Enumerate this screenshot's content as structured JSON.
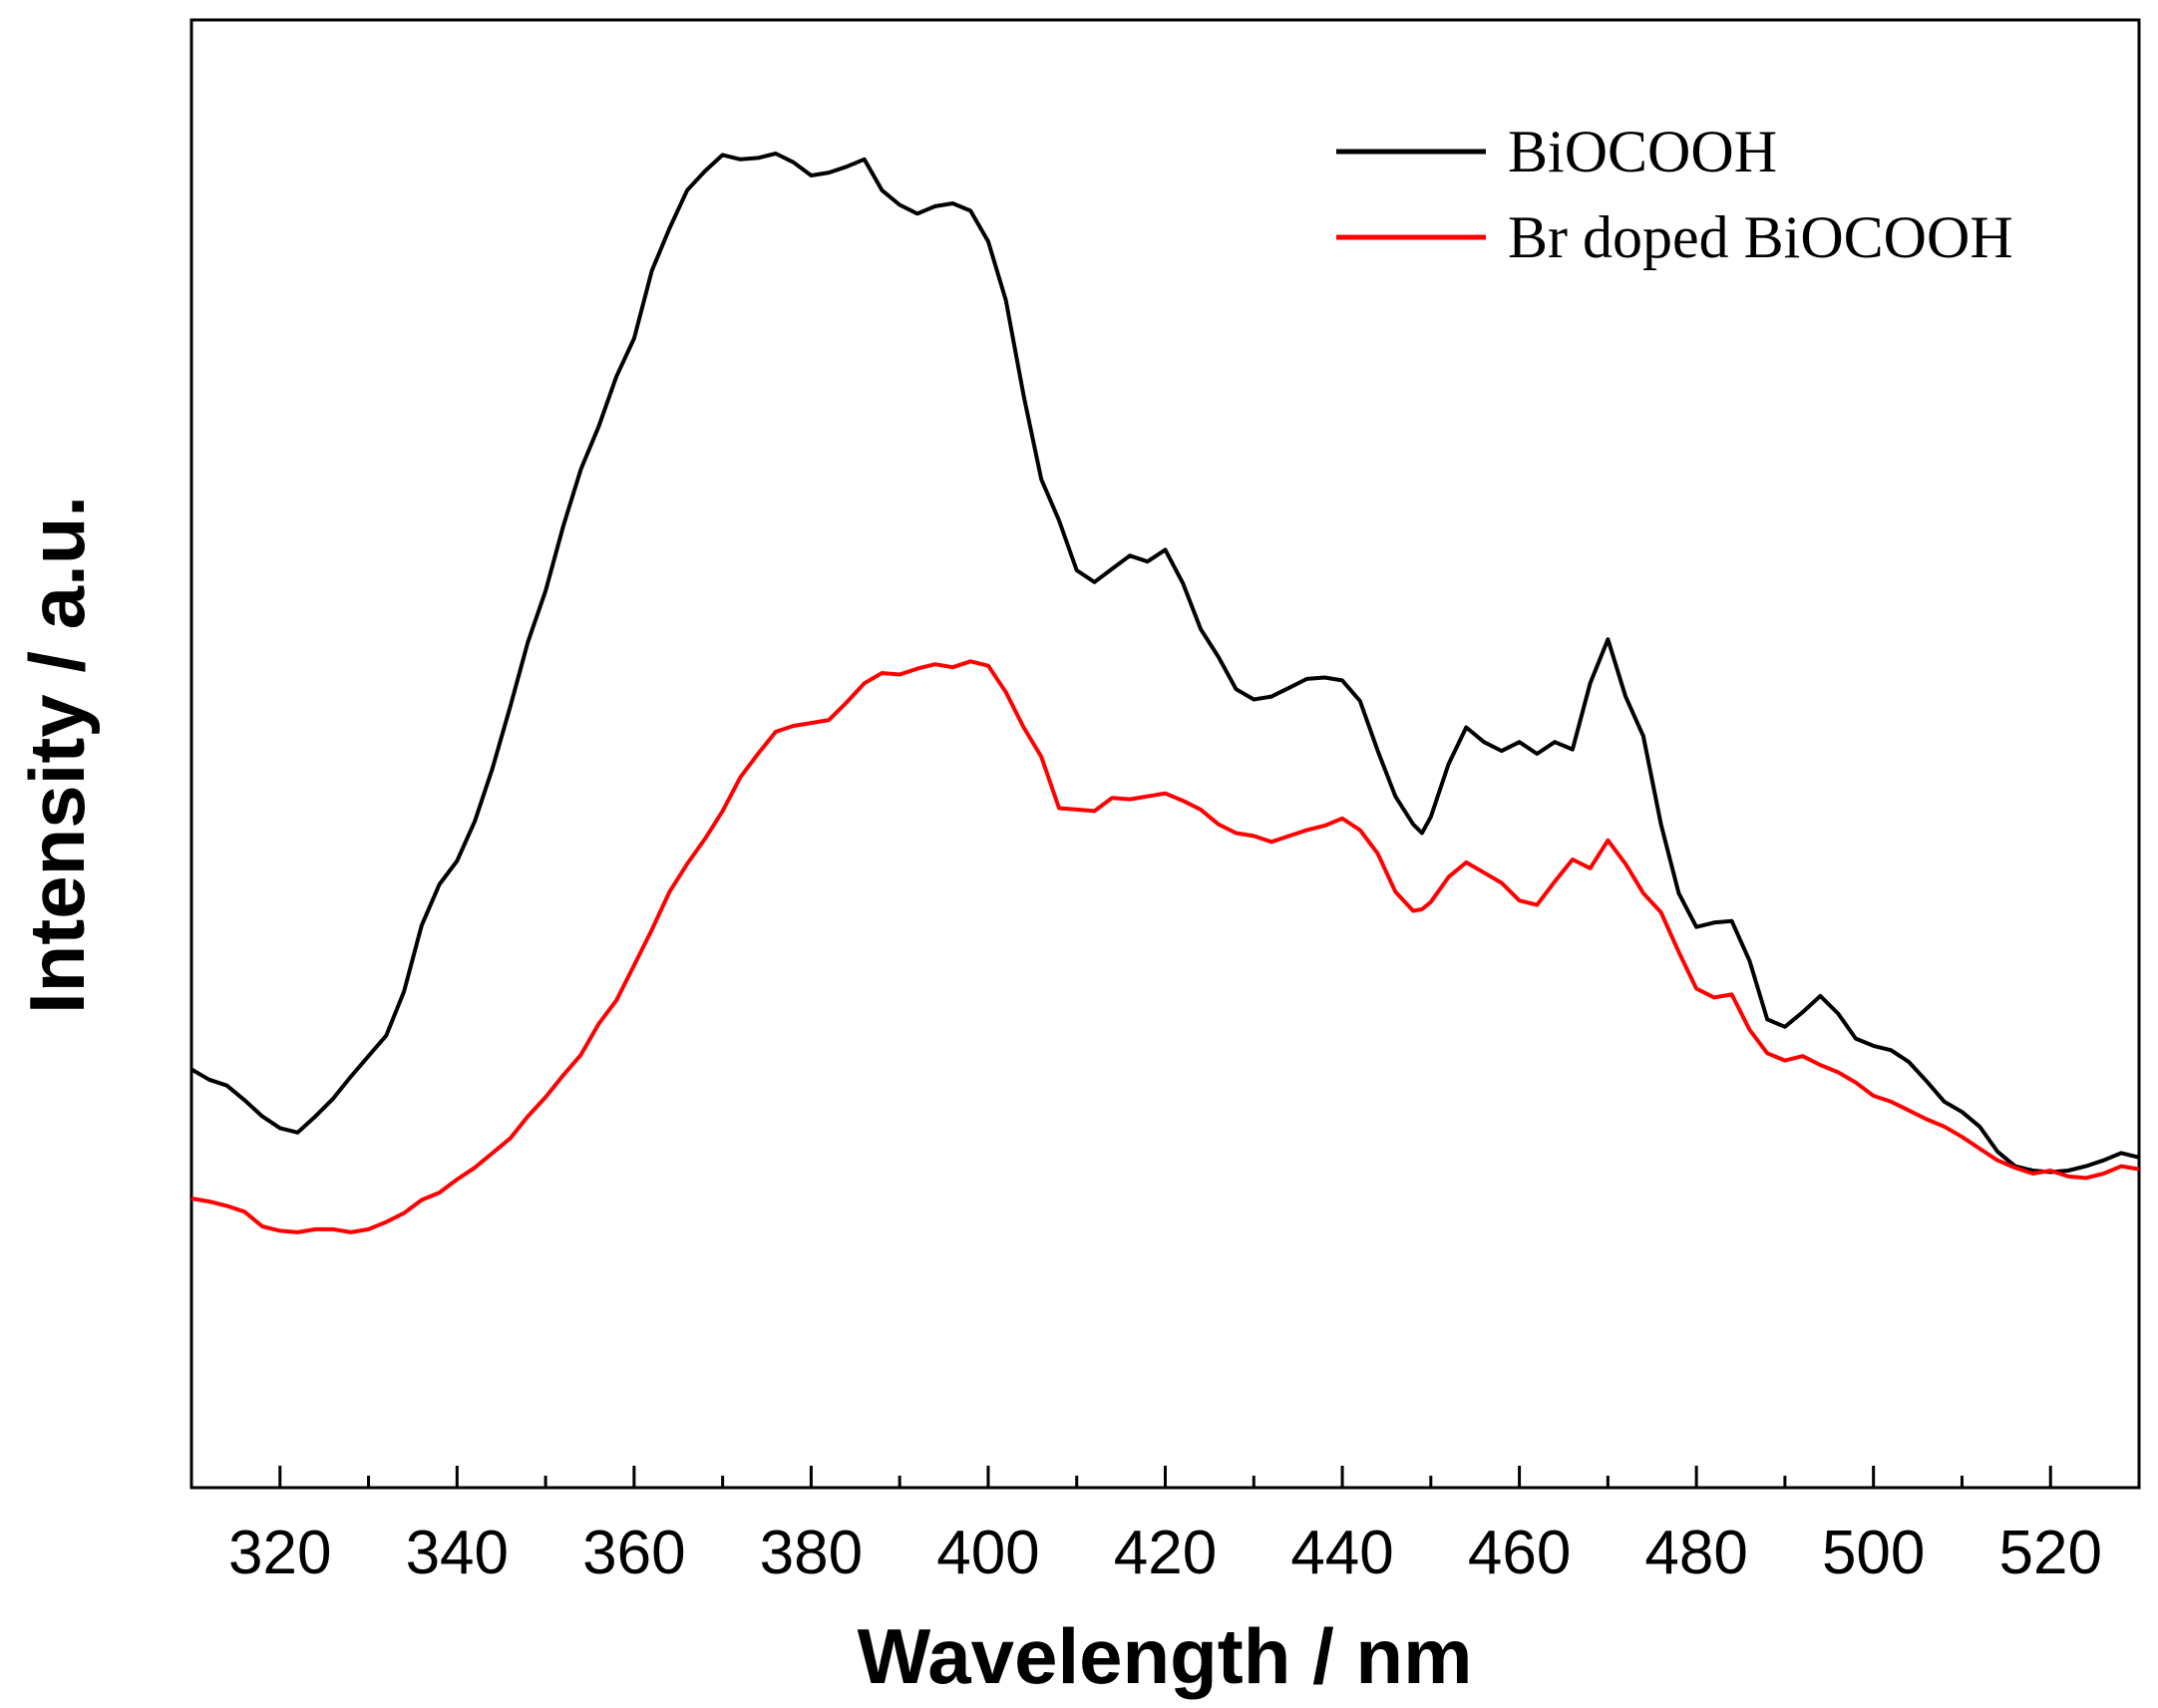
{
  "chart_data": {
    "type": "line",
    "title": "",
    "xlabel": "Wavelength / nm",
    "ylabel": "Intensity / a.u.",
    "xlim": [
      310,
      530
    ],
    "ylim": [
      0,
      100
    ],
    "x_ticks": [
      320,
      340,
      360,
      380,
      400,
      420,
      440,
      460,
      480,
      500,
      520
    ],
    "y_ticks": [],
    "grid": false,
    "legend_position": "top-right",
    "series": [
      {
        "name": "BiOCOOH",
        "color": "#000000",
        "x": [
          310,
          312,
          314,
          316,
          318,
          320,
          322,
          324,
          326,
          328,
          330,
          332,
          334,
          336,
          338,
          340,
          342,
          344,
          346,
          348,
          350,
          352,
          354,
          356,
          358,
          360,
          362,
          364,
          366,
          368,
          370,
          372,
          374,
          376,
          378,
          380,
          382,
          384,
          386,
          388,
          390,
          392,
          394,
          396,
          398,
          400,
          402,
          404,
          406,
          408,
          410,
          412,
          414,
          416,
          418,
          420,
          422,
          424,
          426,
          428,
          430,
          432,
          434,
          436,
          438,
          440,
          442,
          444,
          446,
          448,
          449,
          450,
          452,
          454,
          456,
          458,
          460,
          462,
          464,
          466,
          468,
          470,
          472,
          474,
          476,
          478,
          480,
          482,
          484,
          486,
          488,
          490,
          492,
          494,
          496,
          498,
          500,
          502,
          504,
          506,
          508,
          510,
          512,
          514,
          516,
          518,
          520,
          522,
          524,
          526,
          528,
          530
        ],
        "values": [
          28.5,
          27.8,
          27.4,
          26.4,
          25.3,
          24.5,
          24.2,
          25.3,
          26.5,
          28,
          29.4,
          30.8,
          33.8,
          38.3,
          41.1,
          42.7,
          45.4,
          49,
          53.2,
          57.6,
          61.1,
          65.5,
          69.4,
          72.3,
          75.7,
          78.3,
          82.9,
          85.8,
          88.4,
          89.7,
          90.8,
          90.5,
          90.6,
          90.9,
          90.3,
          89.4,
          89.6,
          90,
          90.5,
          88.4,
          87.4,
          86.8,
          87.3,
          87.5,
          87,
          84.9,
          80.9,
          74.4,
          68.7,
          65.9,
          62.5,
          61.7,
          62.6,
          63.5,
          63.1,
          63.9,
          61.6,
          58.5,
          56.6,
          54.4,
          53.7,
          53.9,
          54.5,
          55.1,
          55.2,
          55,
          53.6,
          50.2,
          47.1,
          45.2,
          44.6,
          45.7,
          49.3,
          51.8,
          50.8,
          50.2,
          50.8,
          50,
          50.8,
          50.3,
          54.8,
          57.8,
          53.9,
          51.2,
          45.2,
          40.5,
          38.2,
          38.5,
          38.6,
          35.9,
          31.9,
          31.4,
          32.4,
          33.5,
          32.3,
          30.6,
          30.1,
          29.8,
          29,
          27.7,
          26.3,
          25.6,
          24.6,
          22.9,
          21.9,
          21.6,
          21.5,
          21.6,
          21.9,
          22.3,
          22.8,
          22.5
        ]
      },
      {
        "name": "Br doped BiOCOOH",
        "color": "#ff0000",
        "x": [
          310,
          312,
          314,
          316,
          318,
          320,
          322,
          324,
          326,
          328,
          330,
          332,
          334,
          336,
          338,
          340,
          342,
          344,
          346,
          348,
          350,
          352,
          354,
          356,
          358,
          360,
          362,
          364,
          366,
          368,
          370,
          372,
          374,
          376,
          378,
          380,
          382,
          384,
          386,
          388,
          390,
          392,
          394,
          396,
          398,
          400,
          402,
          404,
          406,
          408,
          410,
          412,
          414,
          416,
          418,
          420,
          422,
          424,
          426,
          428,
          430,
          432,
          434,
          436,
          438,
          440,
          442,
          444,
          446,
          448,
          449,
          450,
          452,
          454,
          456,
          458,
          460,
          462,
          464,
          466,
          468,
          470,
          472,
          474,
          476,
          478,
          480,
          482,
          484,
          486,
          488,
          490,
          492,
          494,
          496,
          498,
          500,
          502,
          504,
          506,
          508,
          510,
          512,
          514,
          516,
          518,
          520,
          522,
          524,
          526,
          528,
          530
        ],
        "values": [
          19.7,
          19.5,
          19.2,
          18.8,
          17.8,
          17.5,
          17.4,
          17.6,
          17.6,
          17.4,
          17.6,
          18.1,
          18.7,
          19.6,
          20.1,
          21,
          21.8,
          22.8,
          23.8,
          25.3,
          26.6,
          28.1,
          29.5,
          31.6,
          33.2,
          35.6,
          38,
          40.6,
          42.5,
          44.2,
          46.1,
          48.4,
          50,
          51.5,
          51.9,
          52.1,
          52.3,
          53.5,
          54.8,
          55.5,
          55.4,
          55.8,
          56.1,
          55.9,
          56.3,
          56,
          54.2,
          51.8,
          49.8,
          46.3,
          46.2,
          46.1,
          47,
          46.9,
          47.1,
          47.3,
          46.8,
          46.2,
          45.2,
          44.6,
          44.4,
          44,
          44.4,
          44.8,
          45.1,
          45.6,
          44.8,
          43.2,
          40.6,
          39.3,
          39.4,
          39.9,
          41.6,
          42.6,
          41.9,
          41.2,
          40,
          39.7,
          41.3,
          42.8,
          42.2,
          44.1,
          42.5,
          40.5,
          39.2,
          36.5,
          34,
          33.4,
          33.6,
          31.2,
          29.6,
          29.1,
          29.4,
          28.8,
          28.3,
          27.6,
          26.7,
          26.3,
          25.7,
          25.1,
          24.6,
          23.9,
          23.1,
          22.3,
          21.8,
          21.4,
          21.6,
          21.2,
          21.1,
          21.4,
          21.9,
          21.7
        ]
      }
    ]
  }
}
